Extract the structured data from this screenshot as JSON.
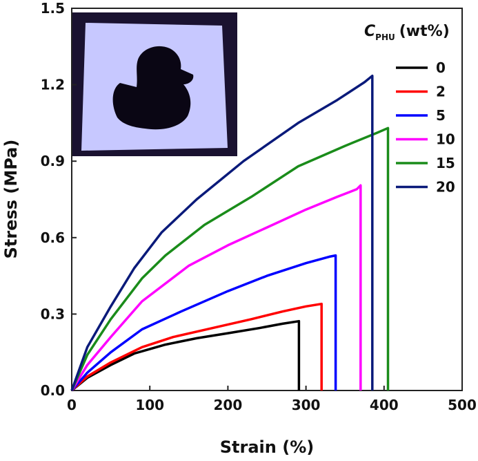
{
  "chart_data": {
    "type": "line",
    "xlabel": "Strain (%)",
    "ylabel": "Stress (MPa)",
    "xlim": [
      0,
      500
    ],
    "ylim": [
      0,
      1.5
    ],
    "xticks": [
      "0",
      "100",
      "200",
      "300",
      "400",
      "500"
    ],
    "yticks": [
      "0.0",
      "0.3",
      "0.6",
      "0.9",
      "1.2",
      "1.5"
    ],
    "grid": false,
    "legend_placement": "right",
    "legend_title_main": "C",
    "legend_title_sub": "PHU",
    "legend_title_unit": "(wt%)",
    "inset": "photo of sample sheet with duck-shaped cutout under UV light",
    "series": [
      {
        "name": "0",
        "color": "#000000",
        "x": [
          0,
          20,
          50,
          80,
          120,
          160,
          200,
          240,
          270,
          291,
          291
        ],
        "y": [
          0,
          0.05,
          0.1,
          0.145,
          0.18,
          0.205,
          0.225,
          0.245,
          0.262,
          0.272,
          0.0
        ]
      },
      {
        "name": "2",
        "color": "#ff0000",
        "x": [
          0,
          20,
          50,
          90,
          130,
          180,
          230,
          270,
          300,
          320,
          320
        ],
        "y": [
          0,
          0.055,
          0.11,
          0.17,
          0.21,
          0.245,
          0.28,
          0.31,
          0.33,
          0.34,
          0.0
        ]
      },
      {
        "name": "5",
        "color": "#0000ff",
        "x": [
          0,
          20,
          50,
          90,
          140,
          200,
          250,
          300,
          330,
          338,
          338
        ],
        "y": [
          0,
          0.07,
          0.15,
          0.24,
          0.31,
          0.39,
          0.45,
          0.5,
          0.525,
          0.53,
          0.0
        ]
      },
      {
        "name": "10",
        "color": "#ff00ff",
        "x": [
          0,
          20,
          50,
          90,
          150,
          200,
          250,
          300,
          340,
          365,
          370,
          370
        ],
        "y": [
          0,
          0.1,
          0.21,
          0.35,
          0.49,
          0.57,
          0.64,
          0.71,
          0.76,
          0.79,
          0.805,
          0.0
        ]
      },
      {
        "name": "15",
        "color": "#1a8c1a",
        "x": [
          0,
          20,
          50,
          90,
          120,
          170,
          230,
          290,
          350,
          390,
          405,
          405
        ],
        "y": [
          0,
          0.14,
          0.28,
          0.44,
          0.53,
          0.65,
          0.76,
          0.88,
          0.96,
          1.01,
          1.03,
          0.0
        ]
      },
      {
        "name": "20",
        "color": "#0a1a7a",
        "x": [
          0,
          20,
          50,
          80,
          115,
          160,
          220,
          290,
          340,
          375,
          385,
          385
        ],
        "y": [
          0,
          0.17,
          0.33,
          0.48,
          0.62,
          0.75,
          0.9,
          1.05,
          1.14,
          1.21,
          1.235,
          0.0
        ]
      }
    ]
  }
}
